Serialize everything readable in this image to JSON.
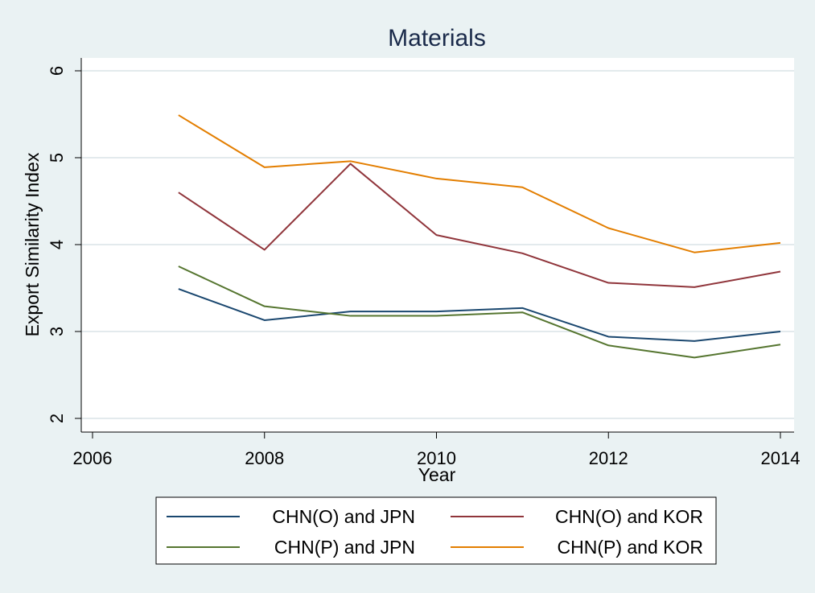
{
  "chart_data": {
    "type": "line",
    "title": "Materials",
    "xlabel": "Year",
    "ylabel": "Export Similarity Index",
    "xlim": [
      2006,
      2014
    ],
    "ylim": [
      2,
      6
    ],
    "xticks": [
      2006,
      2008,
      2010,
      2012,
      2014
    ],
    "yticks": [
      2,
      3,
      4,
      5,
      6
    ],
    "grid": true,
    "legend_position": "bottom",
    "x": [
      2007,
      2008,
      2009,
      2010,
      2011,
      2012,
      2013,
      2014
    ],
    "series": [
      {
        "name": "CHN(O) and JPN",
        "color": "#1a476f",
        "values": [
          3.49,
          3.13,
          3.23,
          3.23,
          3.27,
          2.94,
          2.89,
          3.0
        ]
      },
      {
        "name": "CHN(O) and KOR",
        "color": "#90353b",
        "values": [
          4.6,
          3.94,
          4.93,
          4.11,
          3.9,
          3.56,
          3.51,
          3.69
        ]
      },
      {
        "name": "CHN(P) and JPN",
        "color": "#55752f",
        "values": [
          3.75,
          3.29,
          3.18,
          3.18,
          3.22,
          2.84,
          2.7,
          2.85
        ]
      },
      {
        "name": "CHN(P) and KOR",
        "color": "#e37e00",
        "values": [
          5.49,
          4.89,
          4.96,
          4.76,
          4.66,
          4.19,
          3.91,
          4.02
        ]
      }
    ]
  }
}
